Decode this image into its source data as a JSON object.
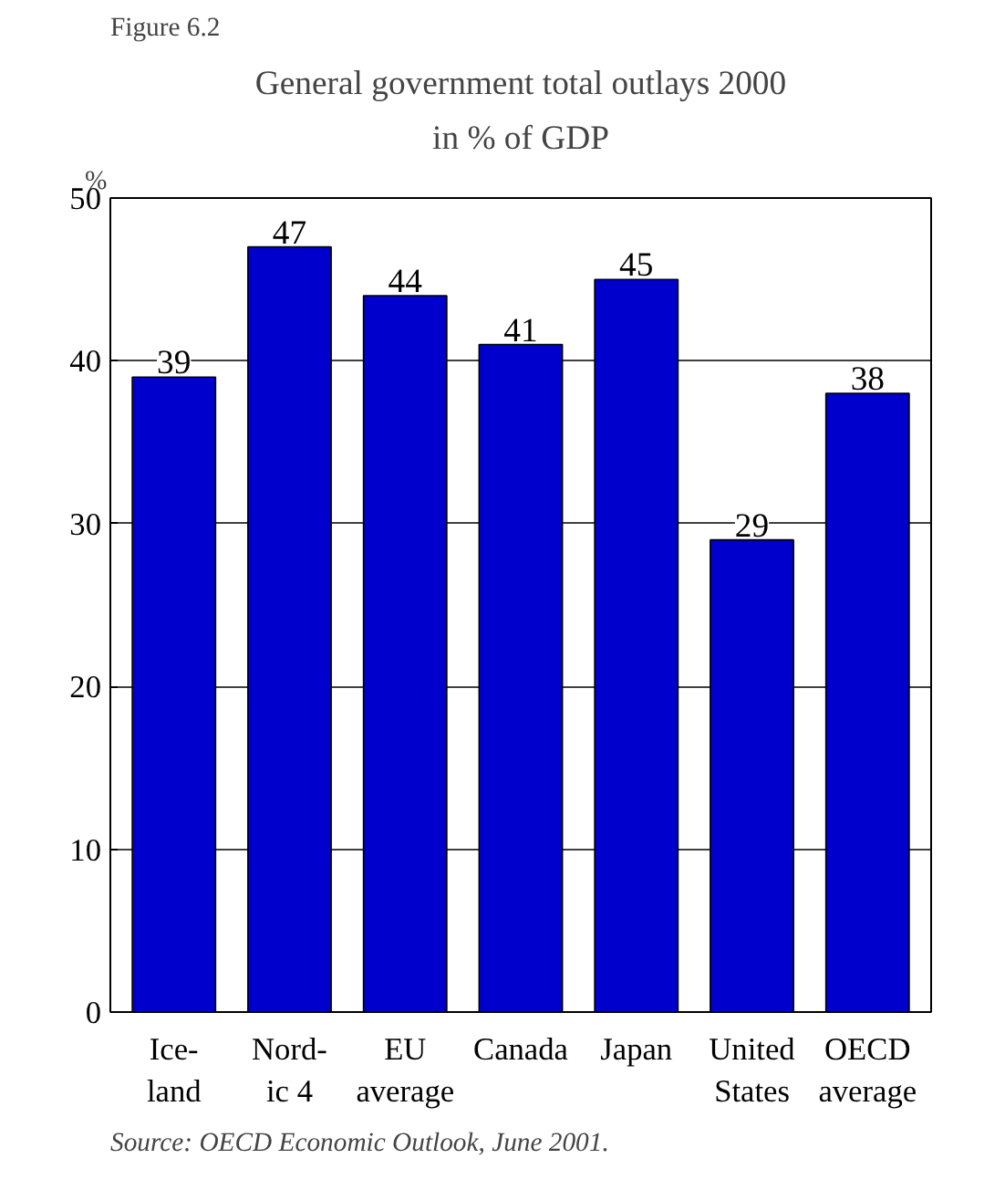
{
  "chart_data": {
    "type": "bar",
    "title": "General government total outlays 2000",
    "subtitle": "in % of GDP",
    "ylabel": "%",
    "categories": [
      "Ice-\nland",
      "Nord-\nic 4",
      "EU\naverage",
      "Canada",
      "Japan",
      "United\nStates",
      "OECD\naverage"
    ],
    "values": [
      39,
      47,
      44,
      41,
      45,
      29,
      38
    ],
    "color": "#0000cc",
    "ylim": [
      0,
      50
    ],
    "yticks": [
      0,
      10,
      20,
      30,
      40,
      50
    ],
    "grid": "y",
    "data_labels": true,
    "annotations": [
      "Figure 6.2",
      "Source: OECD Economic Outlook, June 2001."
    ]
  }
}
